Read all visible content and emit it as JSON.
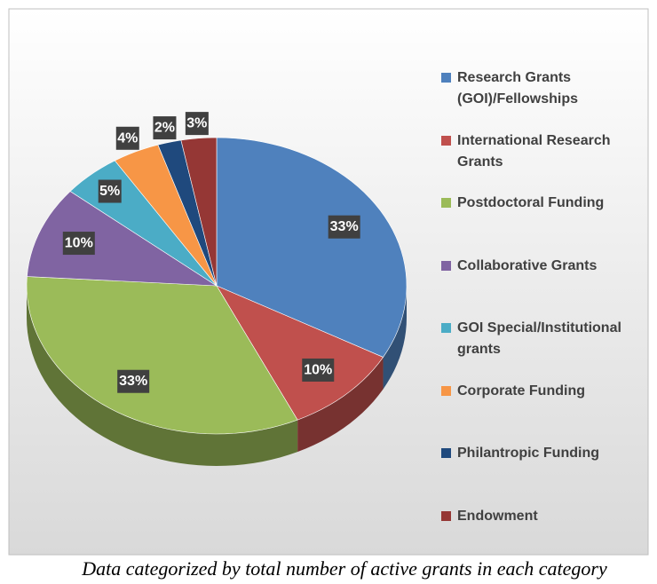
{
  "chart_data": {
    "type": "pie",
    "categories": [
      "Research Grants (GOI)/Fellowships",
      "International Research Grants",
      "Postdoctoral Funding",
      "Collaborative Grants",
      "GOI Special/Institutional grants",
      "Corporate Funding",
      "Philantropic Funding",
      "Endowment"
    ],
    "values": [
      33,
      10,
      33,
      10,
      5,
      4,
      2,
      3
    ],
    "value_labels": [
      "33%",
      "10%",
      "33%",
      "10%",
      "5%",
      "4%",
      "2%",
      "3%"
    ],
    "colors": [
      "#4f81bd",
      "#c0504d",
      "#9bbb59",
      "#8064a2",
      "#4bacc6",
      "#f79646",
      "#1f497d",
      "#953735"
    ],
    "legend": "right",
    "caption": "Data categorized by total number of  active grants in each category"
  }
}
